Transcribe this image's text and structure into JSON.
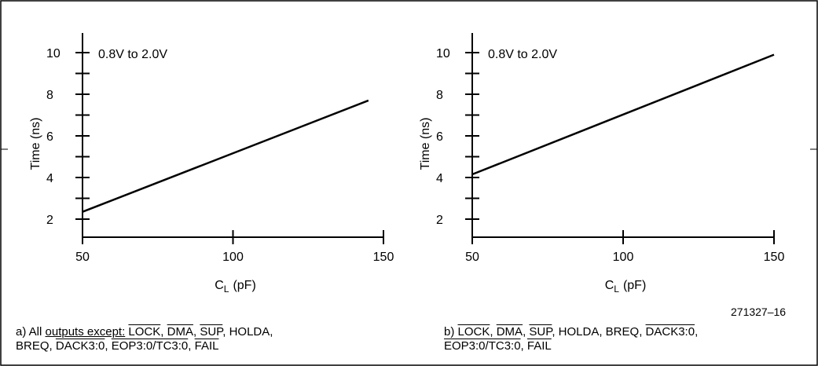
{
  "figure_id": "271327–16",
  "chart_data": [
    {
      "type": "line",
      "annotation": "0.8V to 2.0V",
      "xlabel_main": "C",
      "xlabel_sub": "L",
      "xlabel_unit": "(pF)",
      "ylabel": "Time (ns)",
      "xlim": [
        50,
        150
      ],
      "ylim": [
        1.5,
        11
      ],
      "x_ticks": [
        50,
        100,
        150
      ],
      "y_ticks": [
        2,
        4,
        6,
        8,
        10
      ],
      "series": [
        {
          "x": [
            50,
            145
          ],
          "y": [
            2.35,
            7.7
          ]
        }
      ],
      "caption": {
        "line1": [
          "a) All ",
          "outputs except:",
          " ",
          "LOCK",
          ", ",
          "DMA",
          ", ",
          "SUP",
          ", HOLDA,"
        ],
        "line2": [
          "BREQ, ",
          "DACK3:0",
          ", ",
          "EOP3:0/TC3:0",
          ", ",
          "FAIL"
        ]
      }
    },
    {
      "type": "line",
      "annotation": "0.8V to 2.0V",
      "xlabel_main": "C",
      "xlabel_sub": "L",
      "xlabel_unit": "(pF)",
      "ylabel": "Time (ns)",
      "xlim": [
        50,
        150
      ],
      "ylim": [
        1.5,
        11
      ],
      "x_ticks": [
        50,
        100,
        150
      ],
      "y_ticks": [
        2,
        4,
        6,
        8,
        10
      ],
      "series": [
        {
          "x": [
            50,
            150
          ],
          "y": [
            4.15,
            9.9
          ]
        }
      ],
      "caption": {
        "line1": [
          "b) ",
          "LOCK",
          ", ",
          "DMA",
          ", ",
          "SUP",
          ", HOLDA, BREQ, ",
          "DACK3:0",
          ","
        ],
        "line2": [
          "EOP3:0/TC3:0",
          ", ",
          "FAIL"
        ]
      }
    }
  ]
}
